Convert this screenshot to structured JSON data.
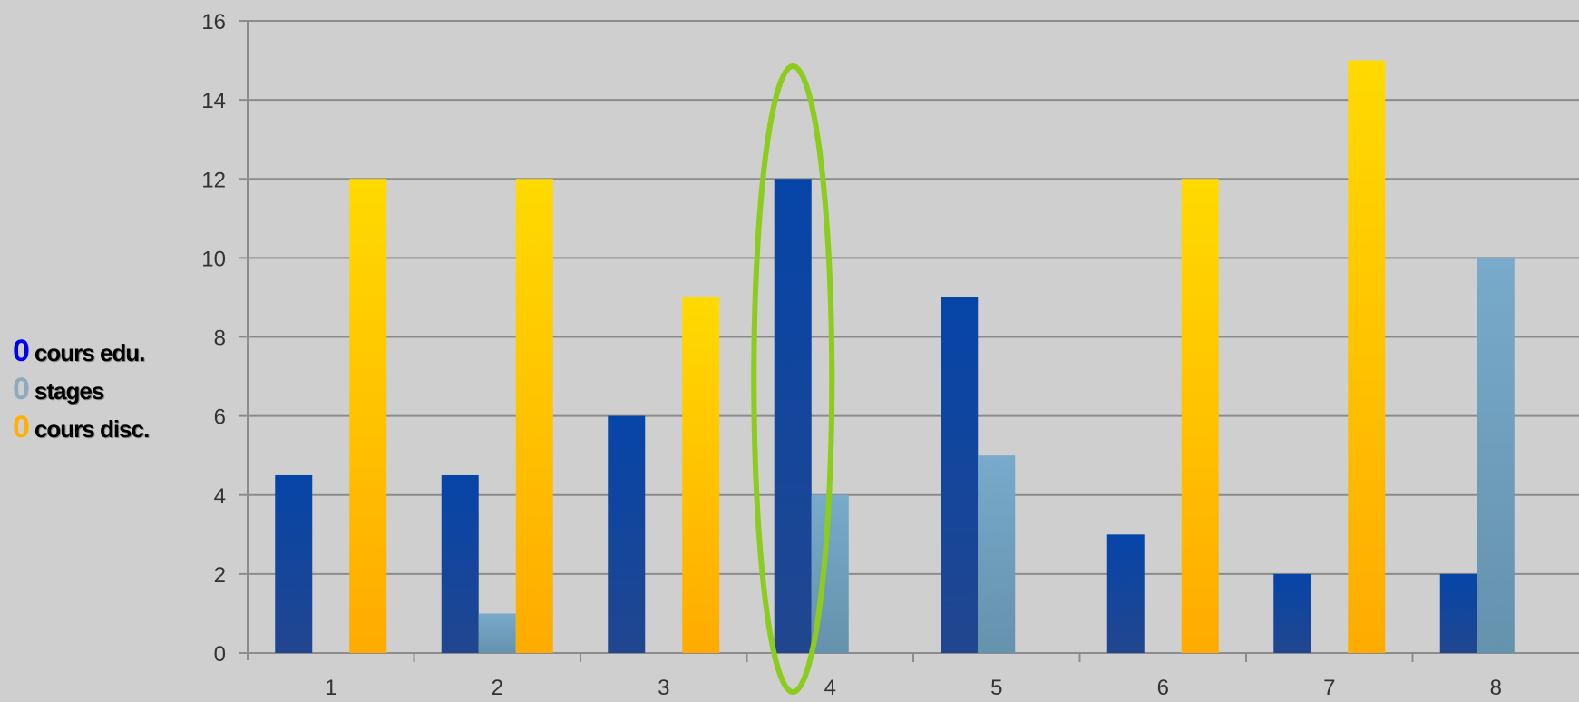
{
  "chart_data": {
    "type": "bar",
    "categories": [
      "1",
      "2",
      "3",
      "4",
      "5",
      "6",
      "7",
      "8"
    ],
    "series": [
      {
        "name": "cours edu.",
        "color": "#1f4aa0",
        "values": [
          4.5,
          4.5,
          6,
          12,
          9,
          3,
          2,
          2
        ]
      },
      {
        "name": "stages",
        "color": "#74a6c7",
        "values": [
          0,
          1,
          0,
          4,
          5,
          0,
          0,
          10
        ]
      },
      {
        "name": "cours disc.",
        "color": "#ffc000",
        "values": [
          12,
          12,
          9,
          0,
          0,
          12,
          15,
          0
        ]
      }
    ],
    "ylim": [
      0,
      16
    ],
    "yticks": [
      "0",
      "2",
      "4",
      "6",
      "8",
      "10",
      "12",
      "14",
      "16"
    ],
    "grid": true,
    "legend_position": "left",
    "annotation": {
      "type": "ellipse",
      "category": "4",
      "color": "#8ccc1c"
    }
  },
  "legend": {
    "items": [
      {
        "marker": "0",
        "label": "cours edu.",
        "marker_color": "#0000ee"
      },
      {
        "marker": "0",
        "label": "stages",
        "marker_color": "#8fa9bd"
      },
      {
        "marker": "0",
        "label": "cours disc.",
        "marker_color": "#ffb000"
      }
    ]
  }
}
